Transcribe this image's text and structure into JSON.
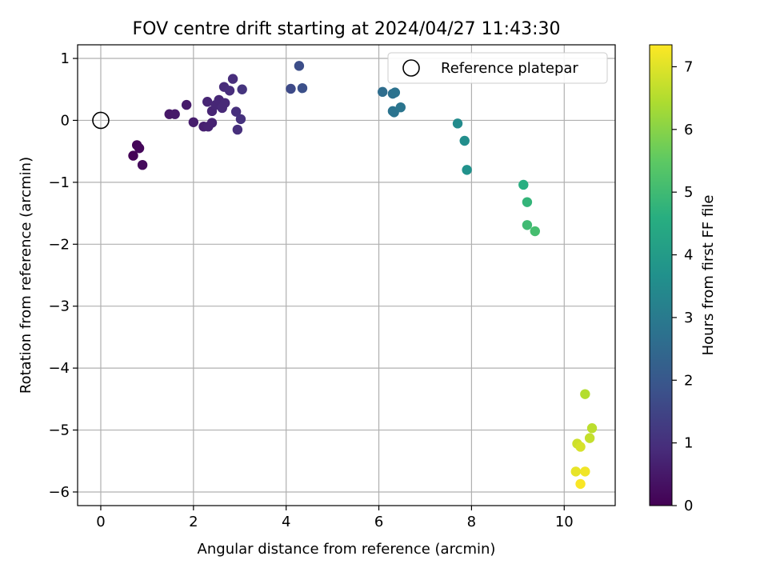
{
  "chart_data": {
    "type": "scatter",
    "title": "FOV centre drift starting at 2024/04/27 11:43:30",
    "xlabel": "Angular distance from reference (arcmin)",
    "ylabel": "Rotation from reference (arcmin)",
    "xlim": [
      -0.5,
      11.1
    ],
    "ylim": [
      -6.22,
      1.22
    ],
    "grid": true,
    "x_ticks": [
      0,
      2,
      4,
      6,
      8,
      10
    ],
    "y_ticks": [
      1,
      0,
      -1,
      -2,
      -3,
      -4,
      -5,
      -6
    ],
    "x_tick_labels": [
      "0",
      "2",
      "4",
      "6",
      "8",
      "10"
    ],
    "y_tick_labels": [
      "1",
      "0",
      "−1",
      "−2",
      "−3",
      "−4",
      "−5",
      "−6"
    ],
    "legend": {
      "position": "top-right",
      "label": "Reference platepar"
    },
    "reference_point": {
      "x": 0,
      "y": 0
    },
    "colorbar": {
      "label": "Hours from first FF file",
      "min": 0,
      "max": 7.35,
      "ticks": [
        0,
        1,
        2,
        3,
        4,
        5,
        6,
        7
      ],
      "tick_labels": [
        "0",
        "1",
        "2",
        "3",
        "4",
        "5",
        "6",
        "7"
      ]
    },
    "points": [
      {
        "x": 0.7,
        "y": -0.57,
        "hours": 0.05
      },
      {
        "x": 0.78,
        "y": -0.4,
        "hours": 0.1
      },
      {
        "x": 0.83,
        "y": -0.45,
        "hours": 0.15
      },
      {
        "x": 0.9,
        "y": -0.72,
        "hours": 0.2
      },
      {
        "x": 1.48,
        "y": 0.1,
        "hours": 0.45
      },
      {
        "x": 1.6,
        "y": 0.1,
        "hours": 0.5
      },
      {
        "x": 1.85,
        "y": 0.25,
        "hours": 0.55
      },
      {
        "x": 2.0,
        "y": -0.03,
        "hours": 0.6
      },
      {
        "x": 2.22,
        "y": -0.1,
        "hours": 0.65
      },
      {
        "x": 2.32,
        "y": -0.1,
        "hours": 0.7
      },
      {
        "x": 2.4,
        "y": -0.04,
        "hours": 0.7
      },
      {
        "x": 2.3,
        "y": 0.3,
        "hours": 0.75
      },
      {
        "x": 2.4,
        "y": 0.15,
        "hours": 0.75
      },
      {
        "x": 2.48,
        "y": 0.25,
        "hours": 0.8
      },
      {
        "x": 2.55,
        "y": 0.33,
        "hours": 0.8
      },
      {
        "x": 2.62,
        "y": 0.2,
        "hours": 0.85
      },
      {
        "x": 2.68,
        "y": 0.28,
        "hours": 0.85
      },
      {
        "x": 2.66,
        "y": 0.54,
        "hours": 0.9
      },
      {
        "x": 2.78,
        "y": 0.48,
        "hours": 0.95
      },
      {
        "x": 2.85,
        "y": 0.67,
        "hours": 0.95
      },
      {
        "x": 2.92,
        "y": 0.14,
        "hours": 1.0
      },
      {
        "x": 2.95,
        "y": -0.15,
        "hours": 1.0
      },
      {
        "x": 3.02,
        "y": 0.02,
        "hours": 1.05
      },
      {
        "x": 3.05,
        "y": 0.5,
        "hours": 1.1
      },
      {
        "x": 4.1,
        "y": 0.51,
        "hours": 1.65
      },
      {
        "x": 4.28,
        "y": 0.88,
        "hours": 1.75
      },
      {
        "x": 4.35,
        "y": 0.52,
        "hours": 1.8
      },
      {
        "x": 6.08,
        "y": 0.46,
        "hours": 2.6
      },
      {
        "x": 6.3,
        "y": 0.43,
        "hours": 2.7
      },
      {
        "x": 6.35,
        "y": 0.45,
        "hours": 2.75
      },
      {
        "x": 6.3,
        "y": 0.15,
        "hours": 2.8
      },
      {
        "x": 6.33,
        "y": 0.13,
        "hours": 2.8
      },
      {
        "x": 6.47,
        "y": 0.21,
        "hours": 2.85
      },
      {
        "x": 7.7,
        "y": -0.05,
        "hours": 3.5
      },
      {
        "x": 7.85,
        "y": -0.33,
        "hours": 3.6
      },
      {
        "x": 7.9,
        "y": -0.8,
        "hours": 3.7
      },
      {
        "x": 9.12,
        "y": -1.04,
        "hours": 4.6
      },
      {
        "x": 9.2,
        "y": -1.32,
        "hours": 4.8
      },
      {
        "x": 9.2,
        "y": -1.69,
        "hours": 5.0
      },
      {
        "x": 9.37,
        "y": -1.79,
        "hours": 5.1
      },
      {
        "x": 10.45,
        "y": -4.42,
        "hours": 6.5
      },
      {
        "x": 10.6,
        "y": -4.97,
        "hours": 6.6
      },
      {
        "x": 10.55,
        "y": -5.13,
        "hours": 6.7
      },
      {
        "x": 10.28,
        "y": -5.22,
        "hours": 6.8
      },
      {
        "x": 10.35,
        "y": -5.27,
        "hours": 6.9
      },
      {
        "x": 10.25,
        "y": -5.67,
        "hours": 7.1
      },
      {
        "x": 10.45,
        "y": -5.67,
        "hours": 7.2
      },
      {
        "x": 10.35,
        "y": -5.87,
        "hours": 7.3
      }
    ]
  }
}
